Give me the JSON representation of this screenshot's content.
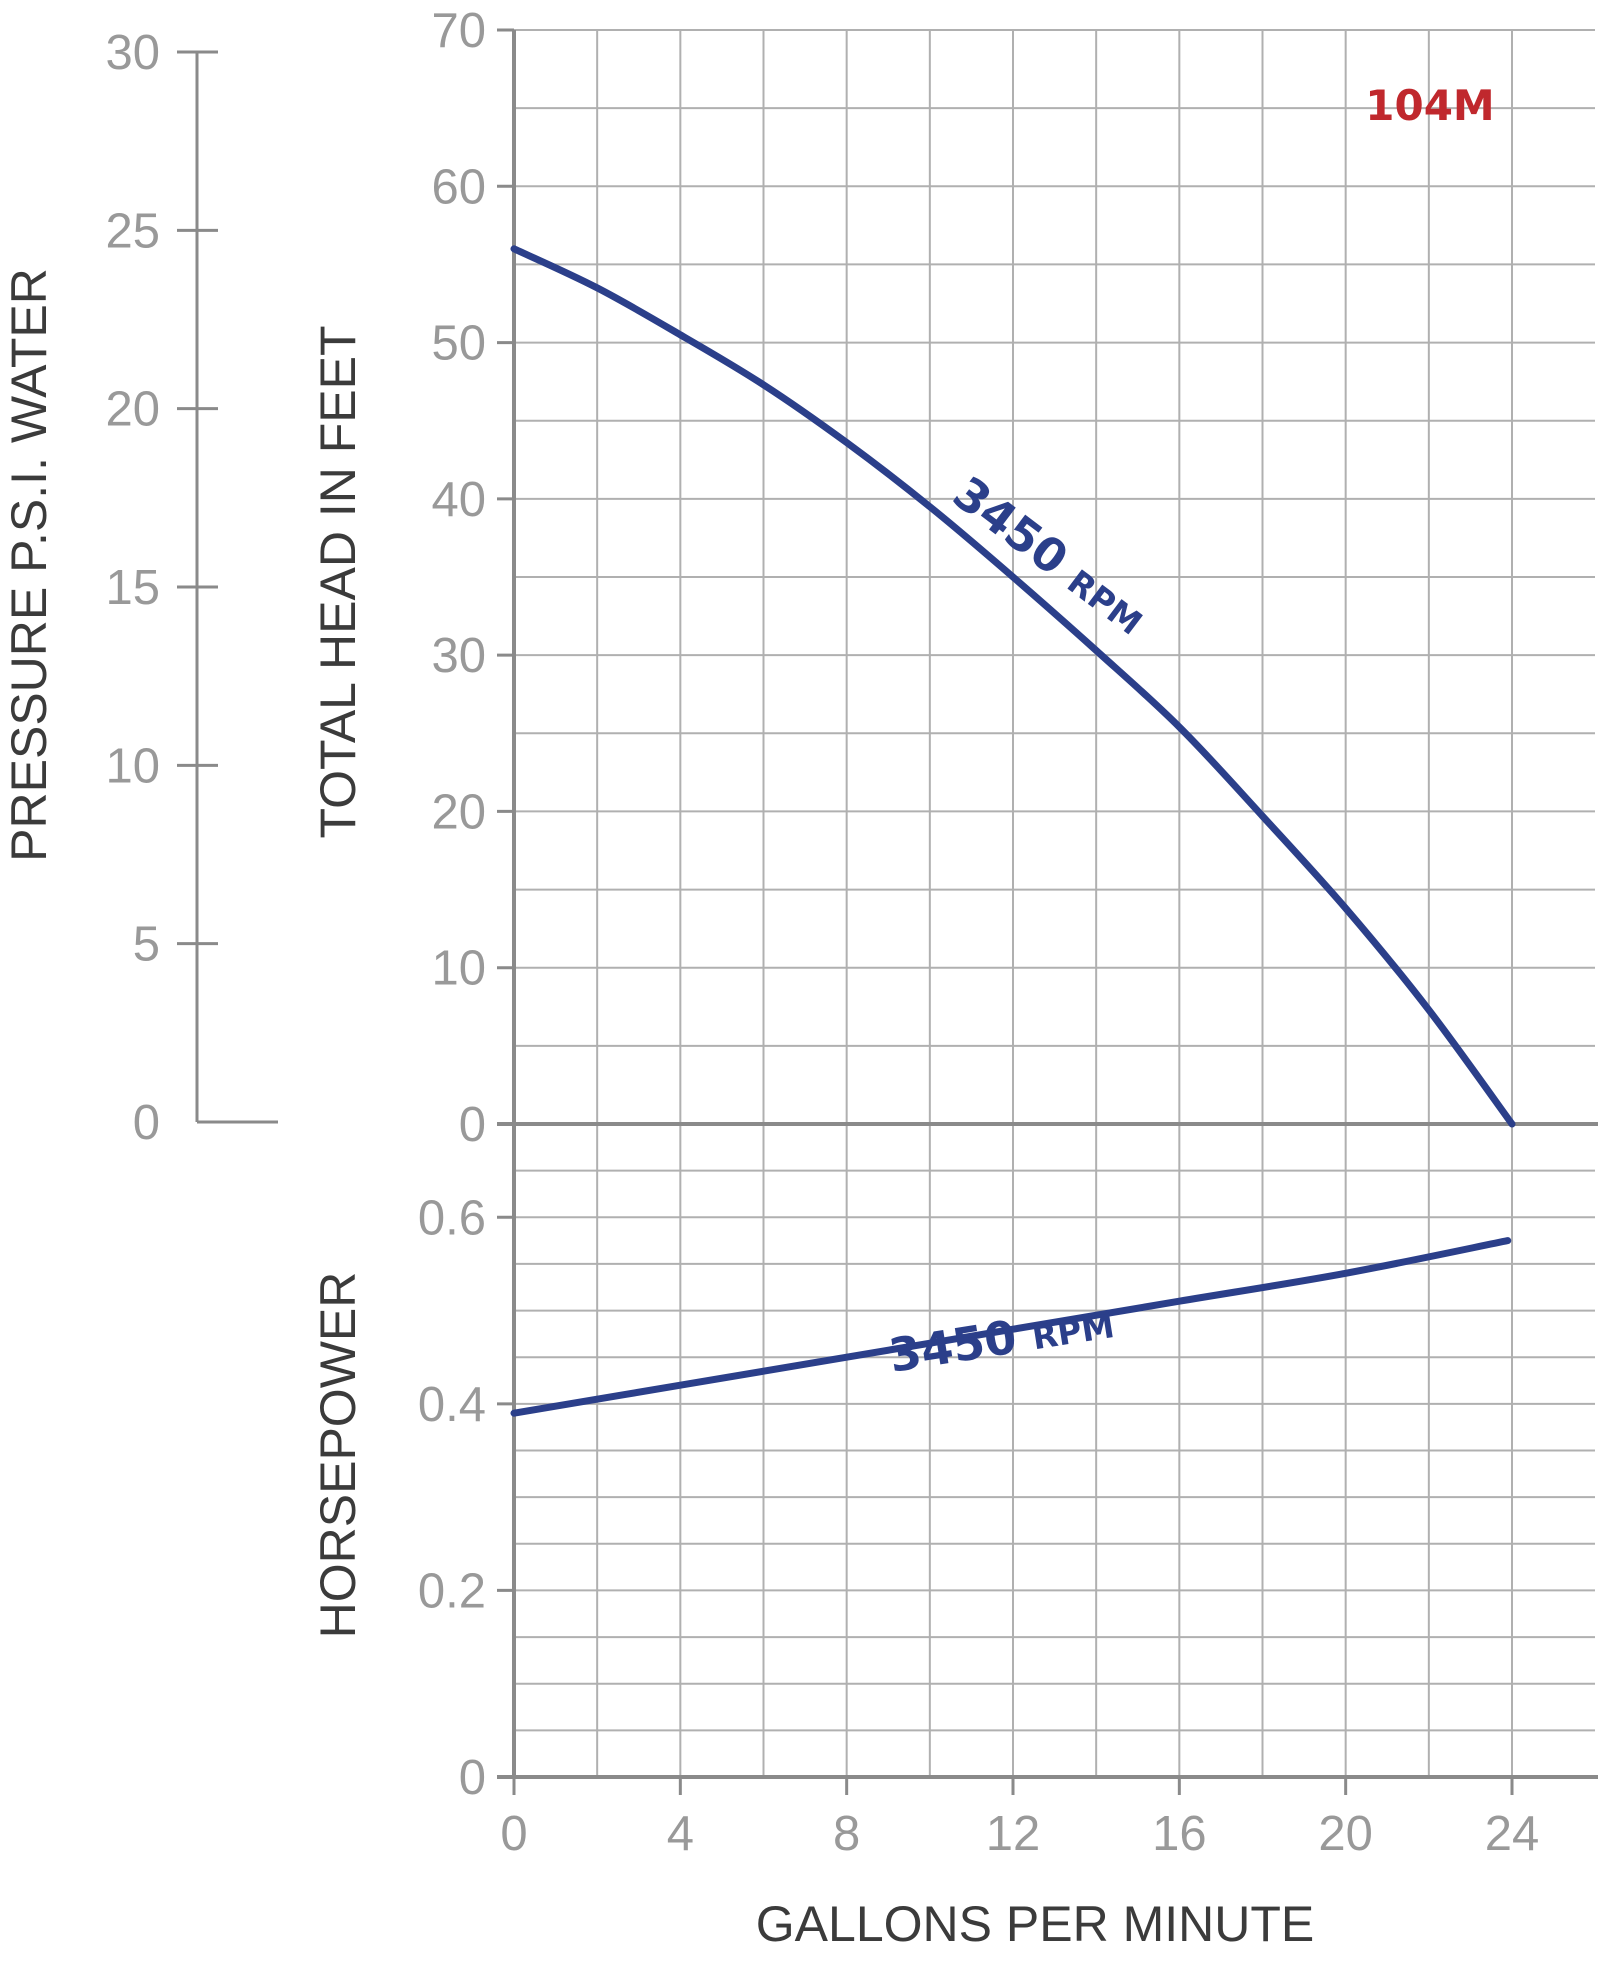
{
  "chart_data": {
    "type": "line",
    "model": "104M",
    "xlabel": "GALLONS PER MINUTE",
    "xlim": [
      0,
      26
    ],
    "x_ticks": [
      0,
      4,
      8,
      12,
      16,
      20,
      24
    ],
    "pressure_axis": {
      "label": "PRESSURE P.S.I. WATER",
      "ylim": [
        0,
        30
      ],
      "ticks": [
        0,
        5,
        10,
        15,
        20,
        25,
        30
      ]
    },
    "head_chart": {
      "ylabel": "TOTAL HEAD IN FEET",
      "ylim": [
        0,
        70
      ],
      "y_ticks": [
        0,
        10,
        20,
        30,
        40,
        50,
        60,
        70
      ],
      "grid": true,
      "series": [
        {
          "name": "3450 RPM",
          "label_number": "3450",
          "label_unit": "RPM",
          "x": [
            0,
            2,
            4,
            6,
            8,
            10,
            12,
            14,
            16,
            18,
            20,
            22,
            24
          ],
          "y": [
            56,
            53.5,
            50.5,
            47.3,
            43.6,
            39.5,
            35,
            30.3,
            25.4,
            19.7,
            13.8,
            7.3,
            0
          ]
        }
      ]
    },
    "horsepower_chart": {
      "ylabel": "HORSEPOWER",
      "ylim": [
        0,
        0.7
      ],
      "y_ticks": [
        "0",
        "0.2",
        "0.4",
        "0.6"
      ],
      "grid": true,
      "series": [
        {
          "name": "3450 RPM",
          "label_number": "3450",
          "label_unit": "RPM",
          "x": [
            0,
            4,
            8,
            12,
            16,
            20,
            23.9
          ],
          "y": [
            0.39,
            0.42,
            0.45,
            0.48,
            0.51,
            0.54,
            0.575
          ]
        }
      ]
    },
    "colors": {
      "curve": "#2b3f8a",
      "grid": "#b0b0b0",
      "axis": "#8a8a8a",
      "ticks": "#999999",
      "titles": "#3b3b3b",
      "model": "#c0282d"
    }
  }
}
